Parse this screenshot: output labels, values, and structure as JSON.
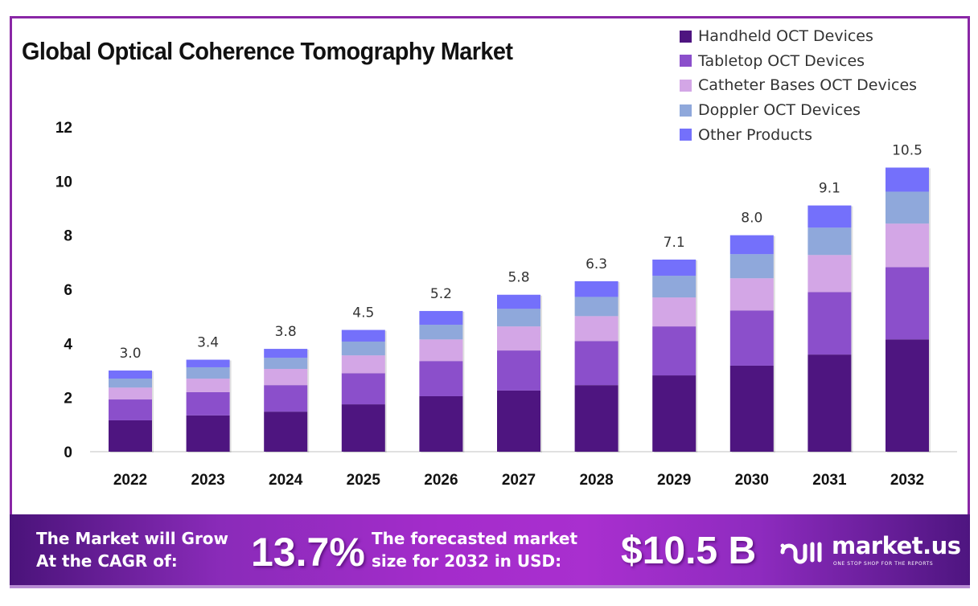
{
  "title": "Global Optical Coherence Tomography Market",
  "chart_data": {
    "type": "bar",
    "stacked": true,
    "title": "Global Optical Coherence Tomography Market",
    "xlabel": "",
    "ylabel": "",
    "ylim": [
      0,
      12
    ],
    "yticks": [
      0,
      2,
      4,
      6,
      8,
      10,
      12
    ],
    "grid": false,
    "legend_position": "top-right",
    "categories": [
      "2022",
      "2023",
      "2024",
      "2025",
      "2026",
      "2027",
      "2028",
      "2029",
      "2030",
      "2031",
      "2032"
    ],
    "series": [
      {
        "name": "Handheld OCT Devices",
        "color": "#4e1580",
        "values": [
          1.16,
          1.34,
          1.48,
          1.75,
          2.05,
          2.26,
          2.46,
          2.82,
          3.18,
          3.59,
          4.15
        ]
      },
      {
        "name": "Tabletop OCT Devices",
        "color": "#8b4fcb",
        "values": [
          0.77,
          0.86,
          0.98,
          1.15,
          1.3,
          1.48,
          1.63,
          1.81,
          2.04,
          2.31,
          2.67
        ]
      },
      {
        "name": "Catheter Bases OCT Devices",
        "color": "#d3a6e6",
        "values": [
          0.44,
          0.5,
          0.6,
          0.66,
          0.8,
          0.89,
          0.92,
          1.07,
          1.19,
          1.37,
          1.61
        ]
      },
      {
        "name": "Doppler OCT Devices",
        "color": "#8fa8db",
        "values": [
          0.33,
          0.42,
          0.41,
          0.51,
          0.54,
          0.65,
          0.71,
          0.8,
          0.89,
          1.01,
          1.18
        ]
      },
      {
        "name": "Other Products",
        "color": "#7470fb",
        "values": [
          0.3,
          0.28,
          0.33,
          0.43,
          0.51,
          0.52,
          0.58,
          0.6,
          0.7,
          0.82,
          0.89
        ]
      }
    ],
    "totals": [
      3.0,
      3.4,
      3.8,
      4.5,
      5.2,
      5.8,
      6.3,
      7.1,
      8.0,
      9.1,
      10.5
    ],
    "total_labels": [
      "3.0",
      "3.4",
      "3.8",
      "4.5",
      "5.2",
      "5.8",
      "6.3",
      "7.1",
      "8.0",
      "9.1",
      "10.5"
    ]
  },
  "banner": {
    "cagr_text_line1": "The Market will Grow",
    "cagr_text_line2": "At the CAGR of:",
    "cagr_value": "13.7%",
    "forecast_text_line1": "The forecasted market",
    "forecast_text_line2": "size for 2032 in USD:",
    "forecast_value": "$10.5 B",
    "brand_name": "market.us",
    "brand_tagline": "ONE STOP SHOP FOR THE REPORTS"
  },
  "colors": {
    "frame": "#8a27a6",
    "banner_start": "#4a137a",
    "banner_mid": "#a42ccb"
  }
}
